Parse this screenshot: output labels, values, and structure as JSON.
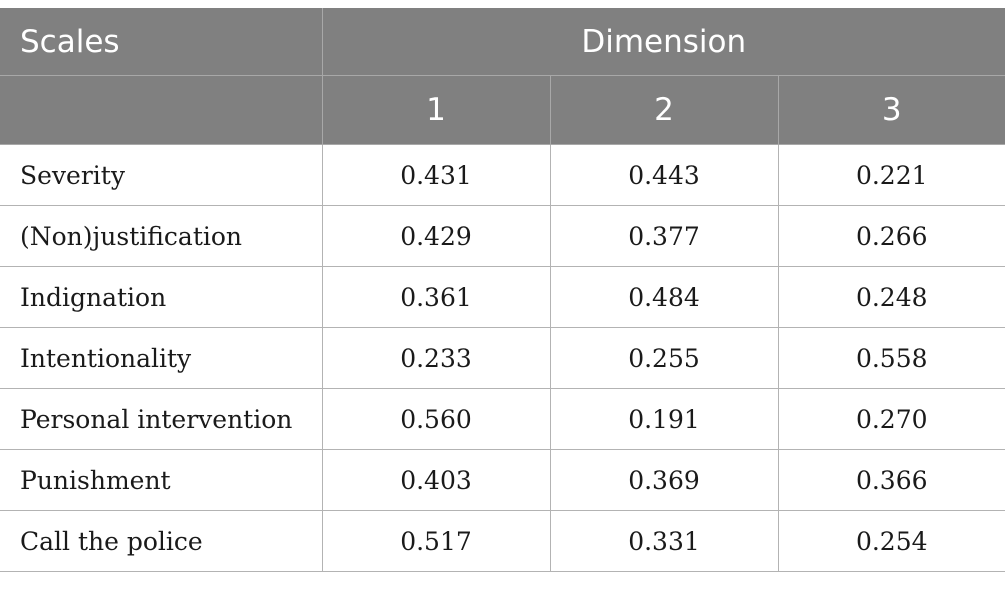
{
  "table": {
    "header_scales": "Scales",
    "header_dimension": "Dimension",
    "dimension_labels": [
      "1",
      "2",
      "3"
    ],
    "rows": [
      {
        "label": "Severity",
        "values": [
          "0.431",
          "0.443",
          "0.221"
        ]
      },
      {
        "label": "(Non)justification",
        "values": [
          "0.429",
          "0.377",
          "0.266"
        ]
      },
      {
        "label": "Indignation",
        "values": [
          "0.361",
          "0.484",
          "0.248"
        ]
      },
      {
        "label": "Intentionality",
        "values": [
          "0.233",
          "0.255",
          "0.558"
        ]
      },
      {
        "label": "Personal intervention",
        "values": [
          "0.560",
          "0.191",
          "0.270"
        ]
      },
      {
        "label": "Punishment",
        "values": [
          "0.403",
          "0.369",
          "0.366"
        ]
      },
      {
        "label": "Call the police",
        "values": [
          "0.517",
          "0.331",
          "0.254"
        ]
      }
    ]
  },
  "colors": {
    "header_bg": "#808080",
    "header_text": "#ffffff",
    "grid": "#b3b3b3"
  }
}
